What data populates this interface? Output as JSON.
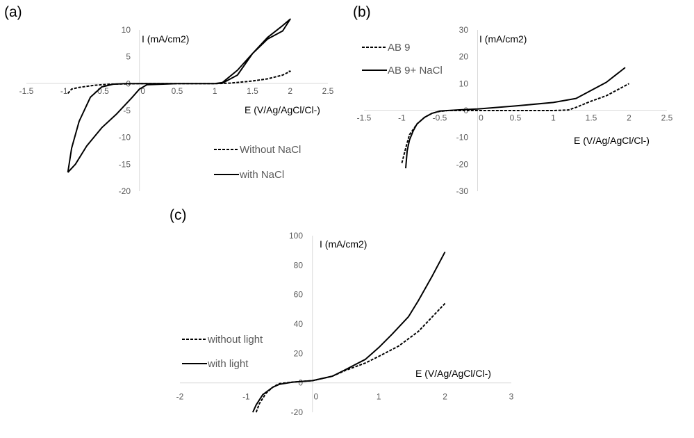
{
  "panels": [
    {
      "label": "(a)"
    },
    {
      "label": "(b)"
    },
    {
      "label": "(c)"
    }
  ],
  "chart_data": [
    {
      "type": "line",
      "xlabel": "E (V/Ag/AgCl/Cl-)",
      "ylabel": "I (mA/cm2)",
      "xlim": [
        -1.5,
        2.5
      ],
      "ylim": [
        -20,
        10
      ],
      "xticks": [
        "-1.5",
        "-1",
        "-0.5",
        "0",
        "0.5",
        "1",
        "1.5",
        "2",
        "2.5"
      ],
      "yticks": [
        "10",
        "5",
        "0",
        "-5",
        "-10",
        "-15",
        "-20"
      ],
      "grid": false,
      "legend_position": "bottom-right",
      "series": [
        {
          "name": "Without NaCl",
          "style": "dashed",
          "x": [
            -0.95,
            -0.9,
            -0.8,
            -0.6,
            -0.4,
            -0.2,
            0,
            0.5,
            1.0,
            1.2,
            1.5,
            1.7,
            1.9,
            2.0,
            1.98
          ],
          "y": [
            -1.8,
            -1.0,
            -0.7,
            -0.3,
            -0.1,
            -0.05,
            0,
            0,
            0,
            0.1,
            0.5,
            0.9,
            1.6,
            2.3,
            2.3
          ]
        },
        {
          "name": "with NaCl",
          "style": "solid",
          "x": [
            -0.95,
            -0.9,
            -0.8,
            -0.65,
            -0.5,
            -0.35,
            -0.2,
            0,
            0.5,
            1.0,
            1.1,
            1.3,
            1.5,
            1.7,
            1.9,
            2.0,
            1.9,
            1.7,
            1.5,
            1.3,
            1.1,
            1.0,
            0.5,
            0.1,
            0,
            -0.1,
            -0.3,
            -0.5,
            -0.7,
            -0.85,
            -0.95
          ],
          "y": [
            -16.5,
            -12,
            -7,
            -2.5,
            -0.6,
            -0.1,
            0,
            0,
            0,
            0,
            0.2,
            2.5,
            5.6,
            8.6,
            10.8,
            12,
            9.8,
            8.3,
            5.6,
            1.6,
            0.1,
            0,
            0,
            -0.2,
            -1,
            -2.6,
            -5.6,
            -8.2,
            -11.6,
            -15,
            -16.5
          ]
        }
      ]
    },
    {
      "type": "line",
      "xlabel": "E (V/Ag/AgCl/Cl-)",
      "ylabel": "I (mA/cm2)",
      "xlim": [
        -1.5,
        2.5
      ],
      "ylim": [
        -30,
        30
      ],
      "xticks": [
        "-1.5",
        "-1",
        "-0.5",
        "0",
        "0.5",
        "1",
        "1.5",
        "2",
        "2.5"
      ],
      "yticks": [
        "30",
        "20",
        "10",
        "0",
        "-10",
        "-20",
        "-30"
      ],
      "grid": false,
      "legend_position": "top-left",
      "series": [
        {
          "name": "AB 9",
          "style": "dashed",
          "x": [
            -1.0,
            -0.95,
            -0.9,
            -0.8,
            -0.7,
            -0.6,
            -0.5,
            -0.4,
            -0.2,
            0,
            0.5,
            1.0,
            1.2,
            1.3,
            1.5,
            1.7,
            2.0
          ],
          "y": [
            -19.5,
            -14,
            -9,
            -5,
            -2.5,
            -1,
            -0.3,
            0,
            0,
            0,
            0,
            0,
            0.2,
            1.2,
            3.5,
            5.5,
            10
          ]
        },
        {
          "name": "AB 9+ NaCl",
          "style": "solid",
          "x": [
            -0.95,
            -0.93,
            -0.9,
            -0.85,
            -0.8,
            -0.7,
            -0.6,
            -0.5,
            -0.4,
            -0.2,
            0,
            0.5,
            1.0,
            1.3,
            1.5,
            1.7,
            1.95
          ],
          "y": [
            -21.5,
            -15,
            -11,
            -7.5,
            -5,
            -2.5,
            -1,
            -0.2,
            0,
            0.3,
            0.6,
            1.7,
            3.0,
            4.5,
            7.5,
            10.5,
            16
          ]
        }
      ]
    },
    {
      "type": "line",
      "xlabel": "E (V/Ag/AgCl/Cl-)",
      "ylabel": "I (mA/cm2)",
      "xlim": [
        -2,
        3
      ],
      "ylim": [
        -20,
        100
      ],
      "xticks": [
        "-2",
        "-1",
        "0",
        "1",
        "2",
        "3"
      ],
      "yticks": [
        "100",
        "80",
        "60",
        "40",
        "20",
        "0",
        "-20"
      ],
      "grid": false,
      "legend_position": "left",
      "series": [
        {
          "name": "without light",
          "style": "dashed",
          "x": [
            -0.85,
            -0.8,
            -0.7,
            -0.6,
            -0.5,
            -0.3,
            0,
            0.3,
            0.5,
            0.8,
            1.0,
            1.3,
            1.6,
            2.0
          ],
          "y": [
            -20,
            -14,
            -7,
            -3,
            -0.5,
            0.5,
            1.5,
            4.5,
            8.5,
            13.5,
            18,
            25,
            35,
            54
          ]
        },
        {
          "name": "with light",
          "style": "solid",
          "x": [
            -0.9,
            -0.85,
            -0.75,
            -0.6,
            -0.5,
            -0.3,
            0,
            0.3,
            0.5,
            0.8,
            1.0,
            1.2,
            1.45,
            1.6,
            1.8,
            2.0
          ],
          "y": [
            -20,
            -15,
            -8,
            -3,
            -1,
            0.5,
            1.5,
            4.5,
            9,
            16,
            24,
            33,
            45,
            56,
            72,
            89
          ]
        }
      ]
    }
  ]
}
